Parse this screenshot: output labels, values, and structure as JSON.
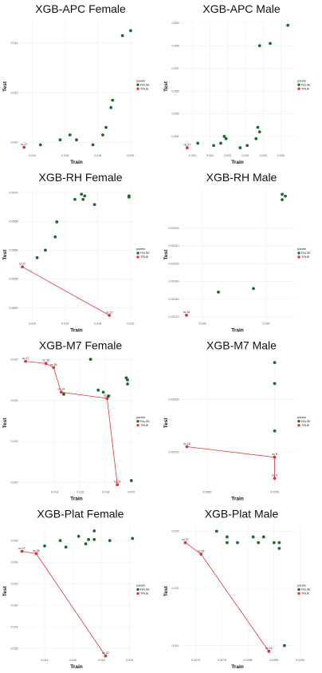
{
  "layout": {
    "rows": 4,
    "cols": 2
  },
  "colors": {
    "false_point": "#1e6b2a",
    "true_point": "#e0323c",
    "front_line": "#e0323c",
    "grid": "#ebebeb"
  },
  "chart_data": [
    {
      "type": "scatter",
      "title": "XGB-APC Female",
      "xlabel": "Train",
      "ylabel": "Test",
      "xlim": [
        0.0132,
        0.0202
      ],
      "ylim": [
        0.0096,
        0.0149
      ],
      "xticks": [
        0.014,
        0.016,
        0.018,
        0.02
      ],
      "yticks": [
        0.01,
        0.012,
        0.014
      ],
      "grid": true,
      "legend_position": "right",
      "legend": {
        "title": "pareto",
        "entries": [
          "FALSE",
          "TRUE"
        ]
      },
      "series": [
        {
          "name": "FALSE",
          "x": [
            0.0145,
            0.0157,
            0.0163,
            0.0167,
            0.0177,
            0.0183,
            0.0185,
            0.0188,
            0.0189,
            0.0195,
            0.02
          ],
          "y": [
            0.0099,
            0.0101,
            0.0103,
            0.0101,
            0.0099,
            0.0103,
            0.0106,
            0.0114,
            0.0117,
            0.0143,
            0.0145
          ]
        },
        {
          "name": "TRUE",
          "x": [
            0.0135
          ],
          "y": [
            0.0098
          ],
          "labels": [
            "nc 27"
          ]
        }
      ]
    },
    {
      "type": "scatter",
      "title": "XGB-APC Male",
      "xlabel": "Train",
      "ylabel": "Test",
      "xlim": [
        0.0203,
        0.0268
      ],
      "ylim": [
        0.0033,
        0.0091
      ],
      "xticks": [
        0.021,
        0.022,
        0.023,
        0.024,
        0.025,
        0.026
      ],
      "yticks": [
        0.004,
        0.005,
        0.006,
        0.007,
        0.008,
        0.009
      ],
      "grid": true,
      "legend_position": "right",
      "legend": {
        "title": "pareto",
        "entries": [
          "FALSE",
          "TRUE"
        ]
      },
      "series": [
        {
          "name": "FALSE",
          "x": [
            0.0213,
            0.0222,
            0.0226,
            0.0228,
            0.0229,
            0.0237,
            0.0241,
            0.0246,
            0.0247,
            0.0248,
            0.0248,
            0.0254,
            0.0264
          ],
          "y": [
            0.0037,
            0.0036,
            0.0037,
            0.004,
            0.0039,
            0.0035,
            0.0036,
            0.0039,
            0.0044,
            0.0042,
            0.008,
            0.0081,
            0.0089
          ],
          "xticks_note": ""
        },
        {
          "name": "TRUE",
          "x": [
            0.0207
          ],
          "y": [
            0.0035
          ],
          "labels": [
            "nc 27"
          ]
        }
      ]
    },
    {
      "type": "scatter",
      "title": "XGB-RH Female",
      "xlabel": "Train",
      "ylabel": "Test",
      "xlim": [
        0.0132,
        0.0202
      ],
      "ylim": [
        0.00478,
        0.00706
      ],
      "xticks": [
        0.014,
        0.016,
        0.018,
        0.02
      ],
      "yticks": [
        0.005,
        0.0055,
        0.006,
        0.0065,
        0.007
      ],
      "ytick_labels": [
        "0.0050",
        "0.0055",
        "0.0060",
        "0.0065",
        "0.0070"
      ],
      "grid": true,
      "legend_position": "right",
      "legend": {
        "title": "pareto",
        "entries": [
          "FALSE",
          "TRUE"
        ]
      },
      "series": [
        {
          "name": "FALSE",
          "x": [
            0.0143,
            0.0148,
            0.0154,
            0.0155,
            0.0166,
            0.017,
            0.0171,
            0.0172,
            0.0178,
            0.0199,
            0.0199
          ],
          "y": [
            0.00587,
            0.006,
            0.00623,
            0.00649,
            0.00688,
            0.00697,
            0.00688,
            0.00694,
            0.00679,
            0.00694,
            0.00692
          ]
        },
        {
          "name": "TRUE",
          "x": [
            0.0134,
            0.0187
          ],
          "y": [
            0.00571,
            0.00487
          ],
          "labels": [
            "nc 27",
            "nc 22"
          ]
        }
      ]
    },
    {
      "type": "scatter",
      "title": "XGB-RH Male",
      "xlabel": "Train",
      "ylabel": "Test",
      "xlim": [
        0.0273,
        0.0309
      ],
      "ylim": [
        0.02168,
        0.02242
      ],
      "xticks": [
        0.028,
        0.03,
        0.032,
        0.034,
        0.036
      ],
      "xtick_labels": [
        "0.028",
        "0.030",
        "0.032",
        "0.034",
        "0.036"
      ],
      "yticks": [
        0.0217,
        0.0218,
        0.0219,
        0.022,
        0.0221,
        0.0222
      ],
      "ytick_labels": [
        "0.02170",
        "0.02180",
        "0.02190",
        "0.02200",
        "0.02210",
        "0.02220"
      ],
      "grid": true,
      "legend_position": "right",
      "legend": {
        "title": "pareto",
        "entries": [
          "FALSE",
          "TRUE"
        ]
      },
      "series": [
        {
          "name": "FALSE",
          "x": [
            0.0285,
            0.0296,
            0.0305,
            0.0305,
            0.0306
          ],
          "y": [
            0.02184,
            0.02186,
            0.02236,
            0.02239,
            0.02238
          ]
        },
        {
          "name": "TRUE",
          "x": [
            0.0275
          ],
          "y": [
            0.02171
          ],
          "labels": [
            "nc 16"
          ]
        }
      ]
    },
    {
      "type": "scatter",
      "title": "XGB-M7 Female",
      "xlabel": "Train",
      "ylabel": "Test",
      "xlim": [
        0.0112,
        0.0202
      ],
      "ylim": [
        0.0197,
        0.0261
      ],
      "xticks": [
        0.014,
        0.016,
        0.018,
        0.02
      ],
      "yticks": [
        0.02,
        0.022,
        0.024,
        0.026
      ],
      "grid": true,
      "legend_position": "right",
      "legend": {
        "title": "pareto",
        "entries": [
          "FALSE",
          "TRUE"
        ]
      },
      "series": [
        {
          "name": "FALSE",
          "x": [
            0.0147,
            0.0168,
            0.0174,
            0.0178,
            0.0182,
            0.0196,
            0.0197,
            0.0197,
            0.02
          ],
          "y": [
            0.0243,
            0.026,
            0.0245,
            0.0244,
            0.0242,
            0.0251,
            0.025,
            0.0248,
            0.0201
          ]
        },
        {
          "name": "TRUE",
          "x": [
            0.0117,
            0.0133,
            0.0139,
            0.0145,
            0.0181,
            0.0189
          ],
          "y": [
            0.0259,
            0.0258,
            0.0256,
            0.0244,
            0.0241,
            0.0199
          ],
          "labels": [
            "nc 27",
            "nc 26",
            "nc 25",
            "nc 24",
            "nc 23",
            "nc 22"
          ]
        }
      ]
    },
    {
      "type": "scatter",
      "title": "XGB-M7 Male",
      "xlabel": "Train",
      "ylabel": "Test",
      "xlim": [
        0.0276,
        0.0293
      ],
      "ylim": [
        0.02183,
        0.02208
      ],
      "xticks": [
        0.028,
        0.029
      ],
      "xtick_labels": [
        "0.0280",
        "0.0290"
      ],
      "yticks": [
        0.0219,
        0.022
      ],
      "ytick_labels": [
        "0.02190",
        "0.02200"
      ],
      "grid": true,
      "legend_position": "right",
      "legend": {
        "title": "pareto",
        "entries": [
          "FALSE",
          "TRUE"
        ]
      },
      "series": [
        {
          "name": "FALSE",
          "x": [
            0.029,
            0.029,
            0.029
          ],
          "y": [
            0.02194,
            0.02203,
            0.02207
          ]
        },
        {
          "name": "TRUE",
          "x": [
            0.0277,
            0.029,
            0.029
          ],
          "y": [
            0.02191,
            0.02189,
            0.02185
          ],
          "labels": [
            "nc 16",
            "nc 8",
            "nc 5"
          ]
        }
      ]
    },
    {
      "type": "scatter",
      "title": "XGB-Plat Female",
      "xlabel": "Train",
      "ylabel": "Test",
      "xlim": [
        0.0122,
        0.0203
      ],
      "ylim": [
        0.0152,
        0.0274
      ],
      "xticks": [
        0.014,
        0.016,
        0.018,
        0.02
      ],
      "yticks": [
        0.016,
        0.018,
        0.02,
        0.022,
        0.024,
        0.026
      ],
      "grid": true,
      "legend_position": "right",
      "legend": {
        "title": "pareto",
        "entries": [
          "FALSE",
          "TRUE"
        ]
      },
      "series": [
        {
          "name": "FALSE",
          "x": [
            0.014,
            0.0151,
            0.0155,
            0.0164,
            0.0169,
            0.0171,
            0.0175,
            0.0175,
            0.0186,
            0.0202
          ],
          "y": [
            0.0255,
            0.026,
            0.0254,
            0.0264,
            0.0257,
            0.0261,
            0.0261,
            0.0269,
            0.026,
            0.0262
          ]
        },
        {
          "name": "TRUE",
          "x": [
            0.0124,
            0.0134,
            0.0183
          ],
          "y": [
            0.025,
            0.0248,
            0.0153
          ],
          "labels": [
            "nc 27",
            "nc 26",
            "nc 22"
          ]
        }
      ]
    },
    {
      "type": "scatter",
      "title": "XGB-Plat Male",
      "xlabel": "Train",
      "ylabel": "Test",
      "xlim": [
        0.0267,
        0.0289
      ],
      "ylim": [
        0.0208,
        0.0231
      ],
      "xticks": [
        0.027,
        0.0275,
        0.028,
        0.0285,
        0.029
      ],
      "xtick_labels": [
        "0.0270",
        "0.0275",
        "0.0280",
        "0.0285",
        "0.0290"
      ],
      "yticks": [
        0.021,
        0.022,
        0.023
      ],
      "grid": true,
      "legend_position": "right",
      "legend": {
        "title": "pareto",
        "entries": [
          "FALSE",
          "TRUE"
        ]
      },
      "series": [
        {
          "name": "FALSE",
          "x": [
            0.0274,
            0.0276,
            0.0276,
            0.0278,
            0.0281,
            0.0282,
            0.0283,
            0.0285,
            0.0286,
            0.0286,
            0.0287
          ],
          "y": [
            0.023,
            0.0228,
            0.0229,
            0.0228,
            0.0229,
            0.0228,
            0.0229,
            0.0228,
            0.0228,
            0.0227,
            0.021
          ],
          "note": ""
        },
        {
          "name": "TRUE",
          "x": [
            0.0268,
            0.0271,
            0.0284
          ],
          "y": [
            0.0228,
            0.0226,
            0.0209
          ],
          "labels": [
            "nc 27",
            "nc 26",
            "nc 22"
          ]
        }
      ]
    }
  ]
}
